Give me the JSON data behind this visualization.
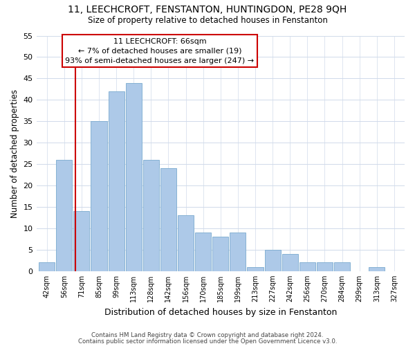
{
  "title": "11, LEECHCROFT, FENSTANTON, HUNTINGDON, PE28 9QH",
  "subtitle": "Size of property relative to detached houses in Fenstanton",
  "xlabel": "Distribution of detached houses by size in Fenstanton",
  "ylabel": "Number of detached properties",
  "bin_labels": [
    "42sqm",
    "56sqm",
    "71sqm",
    "85sqm",
    "99sqm",
    "113sqm",
    "128sqm",
    "142sqm",
    "156sqm",
    "170sqm",
    "185sqm",
    "199sqm",
    "213sqm",
    "227sqm",
    "242sqm",
    "256sqm",
    "270sqm",
    "284sqm",
    "299sqm",
    "313sqm",
    "327sqm"
  ],
  "bar_heights": [
    2,
    26,
    14,
    35,
    42,
    44,
    26,
    24,
    13,
    9,
    8,
    9,
    1,
    5,
    4,
    2,
    2,
    2,
    0,
    1,
    0
  ],
  "bar_color": "#adc9e8",
  "bar_edge_color": "#7aaace",
  "red_line_color": "#cc0000",
  "annotation_title": "11 LEECHCROFT: 66sqm",
  "annotation_line1": "← 7% of detached houses are smaller (19)",
  "annotation_line2": "93% of semi-detached houses are larger (247) →",
  "annotation_box_facecolor": "#ffffff",
  "annotation_box_edgecolor": "#cc0000",
  "ylim": [
    0,
    55
  ],
  "yticks": [
    0,
    5,
    10,
    15,
    20,
    25,
    30,
    35,
    40,
    45,
    50,
    55
  ],
  "grid_color": "#d0daea",
  "footer1": "Contains HM Land Registry data © Crown copyright and database right 2024.",
  "footer2": "Contains public sector information licensed under the Open Government Licence v3.0."
}
